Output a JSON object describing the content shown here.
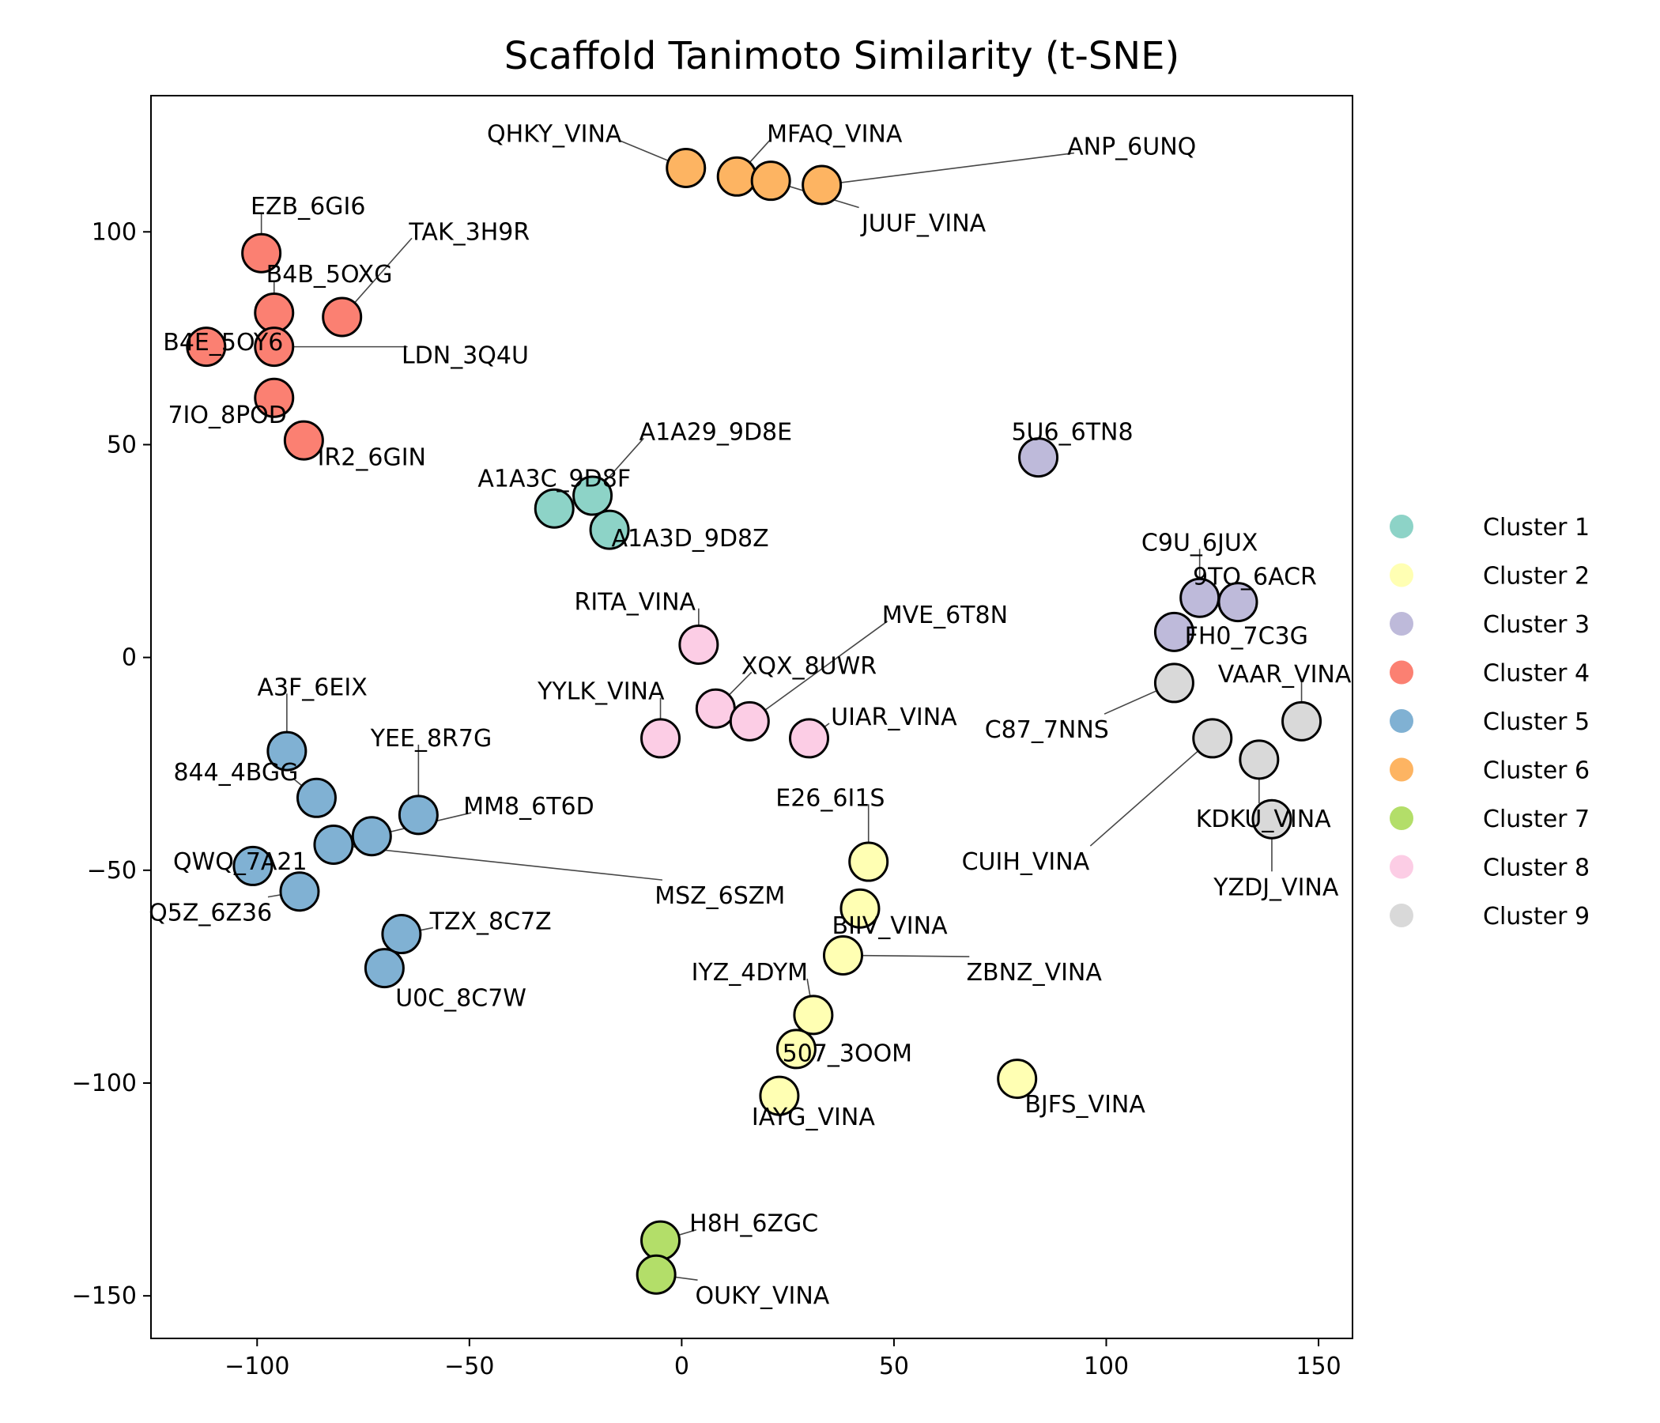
{
  "chart_data": {
    "type": "scatter",
    "title": "Scaffold Tanimoto Similarity (t-SNE)",
    "xlabel": "",
    "ylabel": "",
    "xlim": [
      -125,
      158
    ],
    "ylim": [
      -160,
      132
    ],
    "xticks": [
      -100,
      -50,
      0,
      50,
      100,
      150
    ],
    "yticks": [
      -150,
      -100,
      -50,
      0,
      50,
      100
    ],
    "xtick_labels": [
      "−100",
      "−50",
      "0",
      "50",
      "100",
      "150"
    ],
    "ytick_labels": [
      "−150",
      "−100",
      "−50",
      "0",
      "50",
      "100"
    ],
    "grid": false,
    "legend_position": "right",
    "colors": {
      "Cluster 1": "#8dd3c7",
      "Cluster 2": "#ffffb3",
      "Cluster 3": "#bebada",
      "Cluster 4": "#fb8072",
      "Cluster 5": "#80b1d3",
      "Cluster 6": "#fdb462",
      "Cluster 7": "#b3de69",
      "Cluster 8": "#fccde5",
      "Cluster 9": "#d9d9d9"
    },
    "legend": [
      "Cluster 1",
      "Cluster 2",
      "Cluster 3",
      "Cluster 4",
      "Cluster 5",
      "Cluster 6",
      "Cluster 7",
      "Cluster 8",
      "Cluster 9"
    ],
    "points": [
      {
        "label": "A1A29_9D8E",
        "cluster": "Cluster 1",
        "x": -21,
        "y": 38,
        "lx": 8,
        "ly": 53
      },
      {
        "label": "A1A3C_9D8F",
        "cluster": "Cluster 1",
        "x": -30,
        "y": 35,
        "lx": -30,
        "ly": 42
      },
      {
        "label": "A1A3D_9D8Z",
        "cluster": "Cluster 1",
        "x": -17,
        "y": 30,
        "lx": 2,
        "ly": 28
      },
      {
        "label": "E26_6I1S",
        "cluster": "Cluster 2",
        "x": 44,
        "y": -48,
        "lx": 35,
        "ly": -33
      },
      {
        "label": "BIIV_VINA",
        "cluster": "Cluster 2",
        "x": 42,
        "y": -59,
        "lx": 49,
        "ly": -63
      },
      {
        "label": "ZBNZ_VINA",
        "cluster": "Cluster 2",
        "x": 38,
        "y": -70,
        "lx": 83,
        "ly": -74
      },
      {
        "label": "IYZ_4DYM",
        "cluster": "Cluster 2",
        "x": 31,
        "y": -84,
        "lx": 16,
        "ly": -74
      },
      {
        "label": "507_3OOM",
        "cluster": "Cluster 2",
        "x": 27,
        "y": -92,
        "lx": 39,
        "ly": -93
      },
      {
        "label": "IAYG_VINA",
        "cluster": "Cluster 2",
        "x": 23,
        "y": -103,
        "lx": 31,
        "ly": -108
      },
      {
        "label": "BJFS_VINA",
        "cluster": "Cluster 2",
        "x": 79,
        "y": -99,
        "lx": 95,
        "ly": -105
      },
      {
        "label": "5U6_6TN8",
        "cluster": "Cluster 3",
        "x": 84,
        "y": 47,
        "lx": 92,
        "ly": 53
      },
      {
        "label": "C9U_6JUX",
        "cluster": "Cluster 3",
        "x": 122,
        "y": 14,
        "lx": 122,
        "ly": 27
      },
      {
        "label": "9TO_6ACR",
        "cluster": "Cluster 3",
        "x": 131,
        "y": 13,
        "lx": 135,
        "ly": 19
      },
      {
        "label": "FH0_7C3G",
        "cluster": "Cluster 3",
        "x": 116,
        "y": 6,
        "lx": 133,
        "ly": 5
      },
      {
        "label": "EZB_6GI6",
        "cluster": "Cluster 4",
        "x": -99,
        "y": 95,
        "lx": -88,
        "ly": 106
      },
      {
        "label": "TAK_3H9R",
        "cluster": "Cluster 4",
        "x": -80,
        "y": 80,
        "lx": -50,
        "ly": 100
      },
      {
        "label": "B4B_5OXG",
        "cluster": "Cluster 4",
        "x": -96,
        "y": 81,
        "lx": -83,
        "ly": 90
      },
      {
        "label": "B4E_5OY6",
        "cluster": "Cluster 4",
        "x": -112,
        "y": 73,
        "lx": -108,
        "ly": 74
      },
      {
        "label": "LDN_3Q4U",
        "cluster": "Cluster 4",
        "x": -96,
        "y": 73,
        "lx": -51,
        "ly": 71
      },
      {
        "label": "7IO_8POD",
        "cluster": "Cluster 4",
        "x": -96,
        "y": 61,
        "lx": -107,
        "ly": 57
      },
      {
        "label": "IR2_6GIN",
        "cluster": "Cluster 4",
        "x": -89,
        "y": 51,
        "lx": -73,
        "ly": 47
      },
      {
        "label": "A3F_6EIX",
        "cluster": "Cluster 5",
        "x": -93,
        "y": -22,
        "lx": -87,
        "ly": -7
      },
      {
        "label": "YEE_8R7G",
        "cluster": "Cluster 5",
        "x": -62,
        "y": -37,
        "lx": -59,
        "ly": -19
      },
      {
        "label": "844_4BGG",
        "cluster": "Cluster 5",
        "x": -86,
        "y": -33,
        "lx": -105,
        "ly": -27
      },
      {
        "label": "MM8_6T6D",
        "cluster": "Cluster 5",
        "x": -73,
        "y": -42,
        "lx": -36,
        "ly": -35
      },
      {
        "label": "MSZ_6SZM",
        "cluster": "Cluster 5",
        "x": -82,
        "y": -44,
        "lx": 9,
        "ly": -56
      },
      {
        "label": "QWQ_7A21",
        "cluster": "Cluster 5",
        "x": -101,
        "y": -49,
        "lx": -104,
        "ly": -48
      },
      {
        "label": "Q5Z_6Z36",
        "cluster": "Cluster 5",
        "x": -90,
        "y": -55,
        "lx": -111,
        "ly": -60
      },
      {
        "label": "TZX_8C7Z",
        "cluster": "Cluster 5",
        "x": -66,
        "y": -65,
        "lx": -45,
        "ly": -62
      },
      {
        "label": "U0C_8C7W",
        "cluster": "Cluster 5",
        "x": -70,
        "y": -73,
        "lx": -52,
        "ly": -80
      },
      {
        "label": "QHKY_VINA",
        "cluster": "Cluster 6",
        "x": 1,
        "y": 115,
        "lx": -30,
        "ly": 123
      },
      {
        "label": "MFAQ_VINA",
        "cluster": "Cluster 6",
        "x": 13,
        "y": 113,
        "lx": 36,
        "ly": 123
      },
      {
        "label": "JUUF_VINA",
        "cluster": "Cluster 6",
        "x": 21,
        "y": 112,
        "lx": 57,
        "ly": 102
      },
      {
        "label": "ANP_6UNQ",
        "cluster": "Cluster 6",
        "x": 33,
        "y": 111,
        "lx": 106,
        "ly": 120
      },
      {
        "label": "H8H_6ZGC",
        "cluster": "Cluster 7",
        "x": -5,
        "y": -137,
        "lx": 17,
        "ly": -133
      },
      {
        "label": "OUKY_VINA",
        "cluster": "Cluster 7",
        "x": -6,
        "y": -145,
        "lx": 19,
        "ly": -150
      },
      {
        "label": "RITA_VINA",
        "cluster": "Cluster 8",
        "x": 4,
        "y": 3,
        "lx": -11,
        "ly": 13
      },
      {
        "label": "XQX_8UWR",
        "cluster": "Cluster 8",
        "x": 8,
        "y": -12,
        "lx": 30,
        "ly": -2
      },
      {
        "label": "MVE_6T8N",
        "cluster": "Cluster 8",
        "x": 16,
        "y": -15,
        "lx": 62,
        "ly": 10
      },
      {
        "label": "YYLK_VINA",
        "cluster": "Cluster 8",
        "x": -5,
        "y": -19,
        "lx": -19,
        "ly": -8
      },
      {
        "label": "UIAR_VINA",
        "cluster": "Cluster 8",
        "x": 30,
        "y": -19,
        "lx": 50,
        "ly": -14
      },
      {
        "label": "VAAR_VINA",
        "cluster": "Cluster 9",
        "x": 146,
        "y": -15,
        "lx": 142,
        "ly": -4
      },
      {
        "label": "C87_7NNS",
        "cluster": "Cluster 9",
        "x": 116,
        "y": -6,
        "lx": 86,
        "ly": -17
      },
      {
        "label": "CUIH_VINA",
        "cluster": "Cluster 9",
        "x": 125,
        "y": -19,
        "lx": 81,
        "ly": -48
      },
      {
        "label": "KDKU_VINA",
        "cluster": "Cluster 9",
        "x": 136,
        "y": -24,
        "lx": 137,
        "ly": -38
      },
      {
        "label": "YZDJ_VINA",
        "cluster": "Cluster 9",
        "x": 139,
        "y": -38,
        "lx": 140,
        "ly": -54
      }
    ]
  }
}
